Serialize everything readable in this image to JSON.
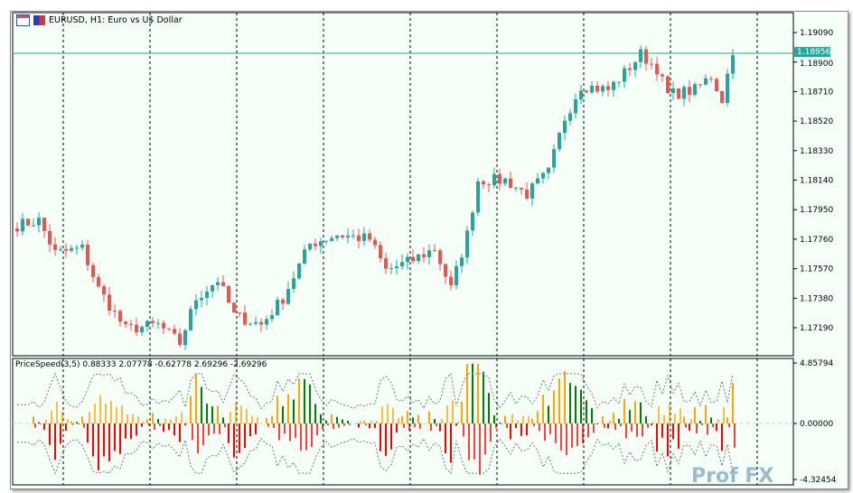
{
  "title": {
    "symbol_line": "EURUSD, H1:  Euro vs U$ Dollar"
  },
  "indicator": {
    "label": "PriceSpeed(3,5) 0.88333 2.07778 -0.62778 2.69296 -2.69296"
  },
  "watermark": "Prof FX",
  "chart_data": [
    {
      "type": "candlestick",
      "title": "EURUSD, H1: Euro vs U$ Dollar",
      "yticks": [
        "1.19090",
        "1.18900",
        "1.18710",
        "1.18520",
        "1.18330",
        "1.18140",
        "1.17950",
        "1.17760",
        "1.17570",
        "1.17380",
        "1.17190"
      ],
      "ylim": [
        1.1701,
        1.1915
      ],
      "current_price": "1.18956",
      "close_keypoints": [
        [
          0,
          1.1785
        ],
        [
          4,
          1.1788
        ],
        [
          7,
          1.1767
        ],
        [
          12,
          1.177
        ],
        [
          15,
          1.1744
        ],
        [
          20,
          1.1718
        ],
        [
          26,
          1.1721
        ],
        [
          30,
          1.1709
        ],
        [
          33,
          1.1738
        ],
        [
          37,
          1.175
        ],
        [
          40,
          1.1727
        ],
        [
          45,
          1.1721
        ],
        [
          49,
          1.1738
        ],
        [
          54,
          1.1773
        ],
        [
          59,
          1.1779
        ],
        [
          65,
          1.1776
        ],
        [
          68,
          1.1756
        ],
        [
          72,
          1.1761
        ],
        [
          77,
          1.177
        ],
        [
          80,
          1.1744
        ],
        [
          83,
          1.1779
        ],
        [
          85,
          1.1814
        ],
        [
          90,
          1.1814
        ],
        [
          94,
          1.1805
        ],
        [
          98,
          1.1819
        ],
        [
          101,
          1.1854
        ],
        [
          104,
          1.1875
        ],
        [
          109,
          1.1872
        ],
        [
          112,
          1.1883
        ],
        [
          115,
          1.1895
        ],
        [
          118,
          1.1886
        ],
        [
          120,
          1.1869
        ],
        [
          125,
          1.1872
        ],
        [
          128,
          1.1881
        ],
        [
          130,
          1.1866
        ],
        [
          132,
          1.1898
        ]
      ],
      "bull_color": "#26a69a",
      "bear_color": "#ef5350"
    },
    {
      "type": "bar",
      "title": "PriceSpeed(3,5)",
      "yticks": [
        "4.85794",
        "0.00000",
        "-4.32454"
      ],
      "ylim": [
        -4.32454,
        4.85794
      ],
      "colors": {
        "up": "#ffa500",
        "down": "#ff0000",
        "accel": "#008000"
      }
    }
  ]
}
